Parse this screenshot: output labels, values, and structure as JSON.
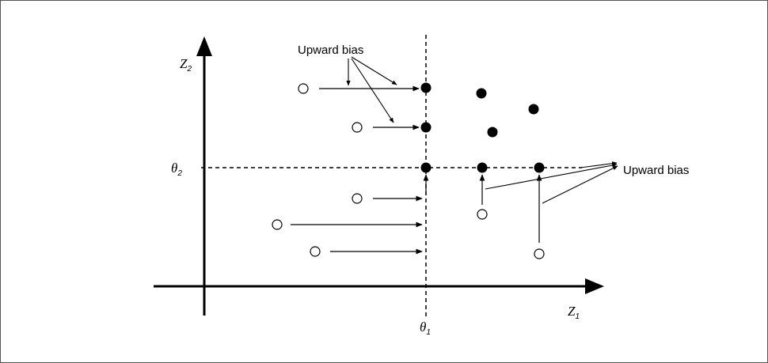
{
  "axes": {
    "x_label": "Z",
    "x_sub": "1",
    "y_label": "Z",
    "y_sub": "2"
  },
  "thresholds": {
    "theta1_label": "θ",
    "theta1_sub": "1",
    "theta2_label": "θ",
    "theta2_sub": "2"
  },
  "annotations": {
    "upward_bias_top": "Upward bias",
    "upward_bias_right": "Upward bias"
  }
}
